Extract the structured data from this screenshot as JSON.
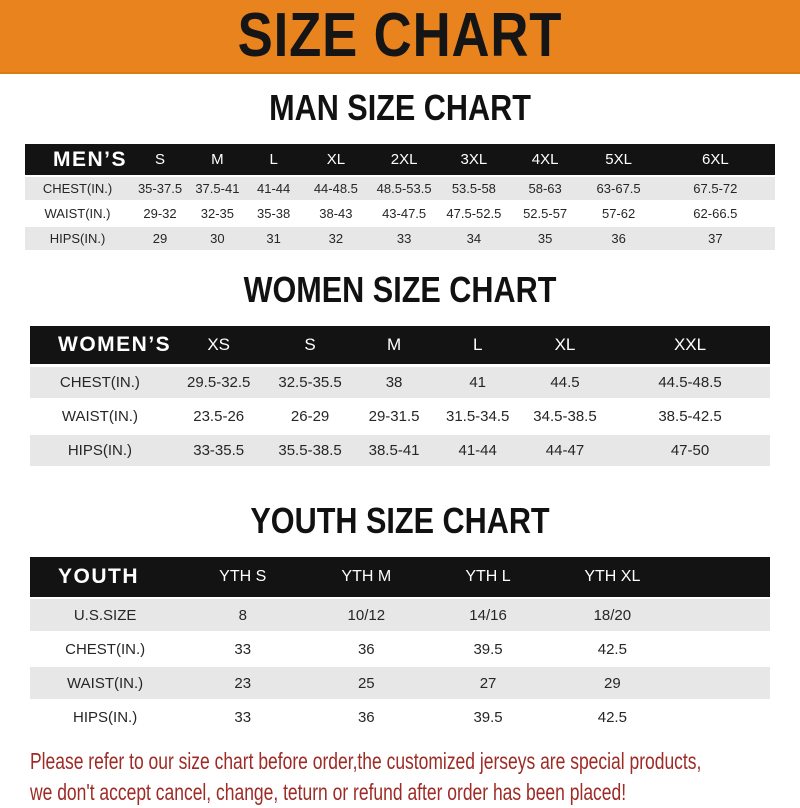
{
  "banner": {
    "title": "SIZE CHART",
    "bg_color": "#E8831E",
    "text_color": "#151515"
  },
  "sections": [
    {
      "id": "men",
      "heading": "MAN SIZE CHART",
      "table": {
        "label": "MEN’S",
        "columns": [
          "S",
          "M",
          "L",
          "XL",
          "2XL",
          "3XL",
          "4XL",
          "5XL",
          "6XL"
        ],
        "rows": [
          {
            "label": "CHEST(IN.)",
            "values": [
              "35-37.5",
              "37.5-41",
              "41-44",
              "44-48.5",
              "48.5-53.5",
              "53.5-58",
              "58-63",
              "63-67.5",
              "67.5-72"
            ]
          },
          {
            "label": "WAIST(IN.)",
            "values": [
              "29-32",
              "32-35",
              "35-38",
              "38-43",
              "43-47.5",
              "47.5-52.5",
              "52.5-57",
              "57-62",
              "62-66.5"
            ]
          },
          {
            "label": "HIPS(IN.)",
            "values": [
              "29",
              "30",
              "31",
              "32",
              "33",
              "34",
              "35",
              "36",
              "37"
            ]
          }
        ]
      }
    },
    {
      "id": "women",
      "heading": "WOMEN SIZE CHART",
      "table": {
        "label": "WOMEN’S",
        "columns": [
          "XS",
          "S",
          "M",
          "L",
          "XL",
          "XXL"
        ],
        "rows": [
          {
            "label": "CHEST(IN.)",
            "values": [
              "29.5-32.5",
              "32.5-35.5",
              "38",
              "41",
              "44.5",
              "44.5-48.5"
            ]
          },
          {
            "label": "WAIST(IN.)",
            "values": [
              "23.5-26",
              "26-29",
              "29-31.5",
              "31.5-34.5",
              "34.5-38.5",
              "38.5-42.5"
            ]
          },
          {
            "label": "HIPS(IN.)",
            "values": [
              "33-35.5",
              "35.5-38.5",
              "38.5-41",
              "41-44",
              "44-47",
              "47-50"
            ]
          }
        ]
      }
    },
    {
      "id": "youth",
      "heading": "YOUTH SIZE CHART",
      "table": {
        "label": "YOUTH",
        "columns": [
          "YTH S",
          "YTH M",
          "YTH L",
          "YTH XL"
        ],
        "rows": [
          {
            "label": "U.S.SIZE",
            "values": [
              "8",
              "10/12",
              "14/16",
              "18/20"
            ]
          },
          {
            "label": "CHEST(IN.)",
            "values": [
              "33",
              "36",
              "39.5",
              "42.5"
            ]
          },
          {
            "label": "WAIST(IN.)",
            "values": [
              "23",
              "25",
              "27",
              "29"
            ]
          },
          {
            "label": "HIPS(IN.)",
            "values": [
              "33",
              "36",
              "39.5",
              "42.5"
            ]
          }
        ]
      }
    }
  ],
  "footer": {
    "lines": [
      "Please refer to our size chart before order,the customized jerseys are special products,",
      "we don't accept cancel, change, teturn or refund after order has been placed!"
    ],
    "text_color": "#9E2B25"
  },
  "colors": {
    "header_bar": "#131313",
    "header_text": "#FFFFFF",
    "row_alt": "#E7E7E7",
    "row_base": "#FFFFFF",
    "body_text": "#262626"
  }
}
